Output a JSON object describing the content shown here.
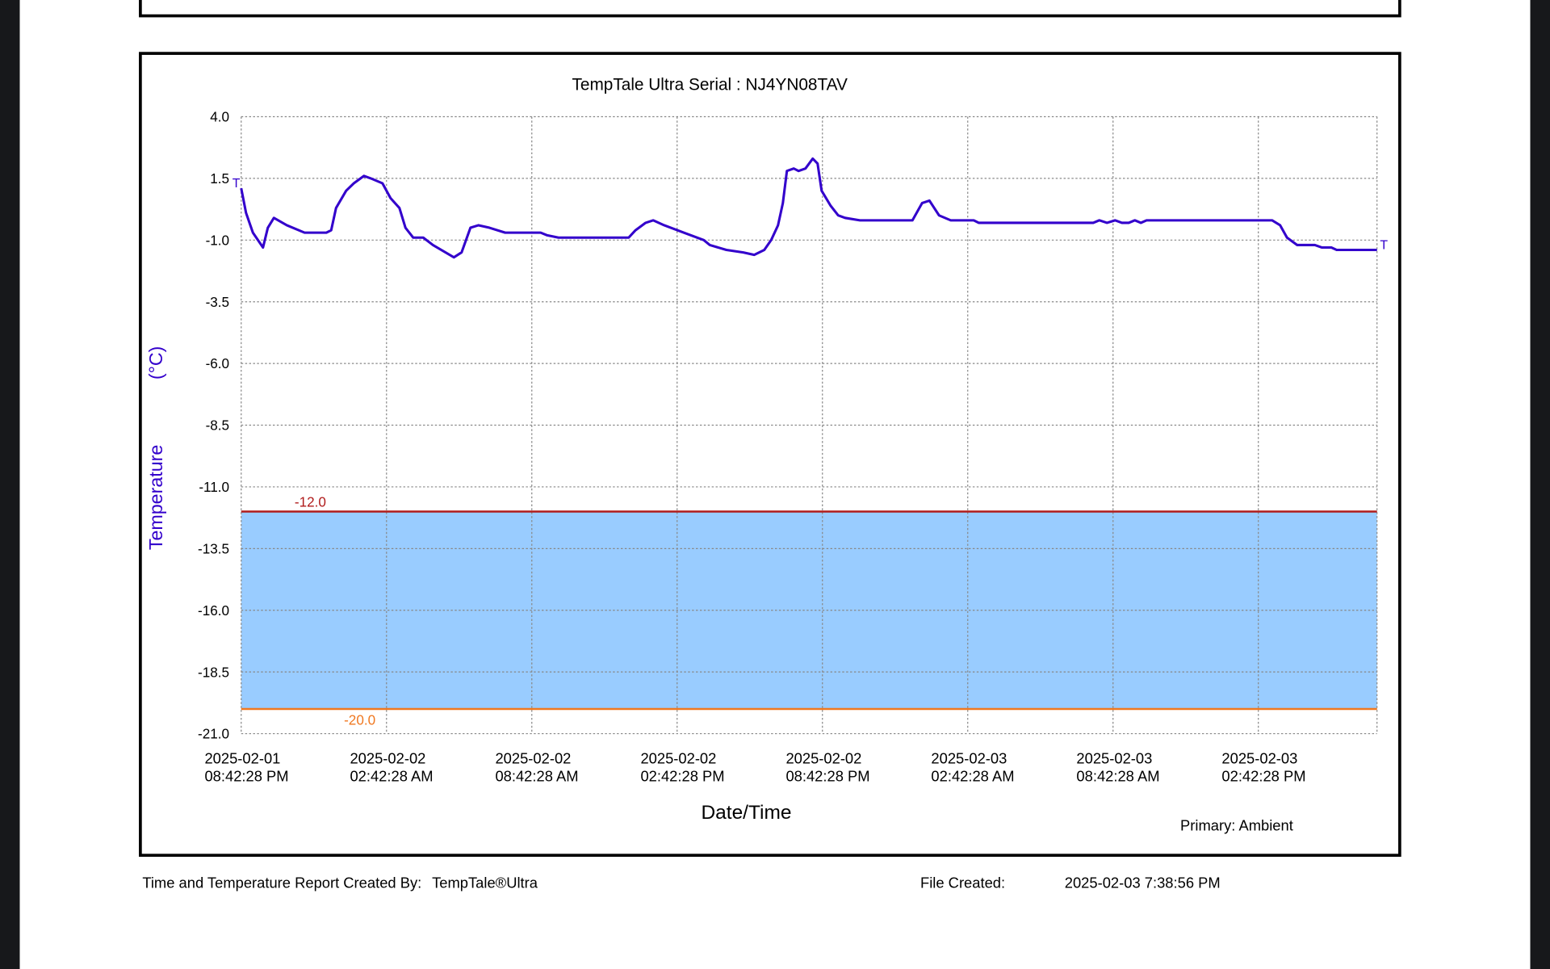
{
  "chart_data": {
    "type": "line",
    "title": "TempTale Ultra  Serial : NJ4YN08TAV",
    "xlabel": "Date/Time",
    "ylabel": "Temperature",
    "yunit": "(°C)",
    "grid": true,
    "xlim": [
      "2025-02-01 20:42:28",
      "2025-02-03 19:36:28"
    ],
    "xticks": [
      {
        "value": "2025-02-01 20:42:28",
        "label": [
          "2025-02-01",
          "08:42:28 PM"
        ]
      },
      {
        "value": "2025-02-02 02:42:28",
        "label": [
          "2025-02-02",
          "02:42:28 AM"
        ]
      },
      {
        "value": "2025-02-02 08:42:28",
        "label": [
          "2025-02-02",
          "08:42:28 AM"
        ]
      },
      {
        "value": "2025-02-02 14:42:28",
        "label": [
          "2025-02-02",
          "02:42:28 PM"
        ]
      },
      {
        "value": "2025-02-02 20:42:28",
        "label": [
          "2025-02-02",
          "08:42:28 PM"
        ]
      },
      {
        "value": "2025-02-03 02:42:28",
        "label": [
          "2025-02-03",
          "02:42:28 AM"
        ]
      },
      {
        "value": "2025-02-03 08:42:28",
        "label": [
          "2025-02-03",
          "08:42:28 AM"
        ]
      },
      {
        "value": "2025-02-03 14:42:28",
        "label": [
          "2025-02-03",
          "02:42:28 PM"
        ]
      }
    ],
    "ylim": [
      -21,
      4
    ],
    "yticks": [
      {
        "value": -21,
        "label": "-21.0"
      },
      {
        "value": -18.5,
        "label": "-18.5"
      },
      {
        "value": -16,
        "label": "-16.0"
      },
      {
        "value": -13.5,
        "label": "-13.5"
      },
      {
        "value": -11,
        "label": "-11.0"
      },
      {
        "value": -8.5,
        "label": "-8.5"
      },
      {
        "value": -6,
        "label": "-6.0"
      },
      {
        "value": -3.5,
        "label": "-3.5"
      },
      {
        "value": -1,
        "label": "-1.0"
      },
      {
        "value": 1.5,
        "label": "1.5"
      },
      {
        "value": 4,
        "label": "4.0"
      }
    ],
    "limits": [
      {
        "value": -12,
        "label": "-12.0",
        "color": "#b01c1c"
      },
      {
        "value": -20,
        "label": "-20.0",
        "color": "#f07820"
      }
    ],
    "band_color": "#99ccff",
    "x": [
      "2025-02-01 20:42:28",
      "2025-02-01 20:54:28",
      "2025-02-01 21:11:28",
      "2025-02-01 21:36:28",
      "2025-02-01 21:48:28",
      "2025-02-01 22:03:28",
      "2025-02-01 22:35:28",
      "2025-02-01 23:19:28",
      "2025-02-02 00:13:28",
      "2025-02-02 00:25:28",
      "2025-02-02 00:37:28",
      "2025-02-02 01:02:28",
      "2025-02-02 01:21:28",
      "2025-02-02 01:46:28",
      "2025-02-02 02:03:28",
      "2025-02-02 02:32:28",
      "2025-02-02 02:52:28",
      "2025-02-02 03:14:28",
      "2025-02-02 03:29:28",
      "2025-02-02 03:48:28",
      "2025-02-02 04:13:28",
      "2025-02-02 04:37:28",
      "2025-02-02 05:29:28",
      "2025-02-02 05:48:28",
      "2025-02-02 06:10:28",
      "2025-02-02 06:30:28",
      "2025-02-02 06:57:28",
      "2025-02-02 07:36:28",
      "2025-02-02 09:04:28",
      "2025-02-02 09:19:28",
      "2025-02-02 09:48:28",
      "2025-02-02 12:42:28",
      "2025-02-02 12:59:28",
      "2025-02-02 13:24:28",
      "2025-02-02 13:43:28",
      "2025-02-02 14:10:28",
      "2025-02-02 14:59:28",
      "2025-02-02 15:48:28",
      "2025-02-02 16:03:28",
      "2025-02-02 16:44:28",
      "2025-02-02 17:26:28",
      "2025-02-02 17:53:28",
      "2025-02-02 18:18:28",
      "2025-02-02 18:35:28",
      "2025-02-02 18:52:28",
      "2025-02-02 19:04:28",
      "2025-02-02 19:14:28",
      "2025-02-02 19:31:28",
      "2025-02-02 19:43:28",
      "2025-02-02 20:00:28",
      "2025-02-02 20:18:28",
      "2025-02-02 20:30:28",
      "2025-02-02 20:40:28",
      "2025-02-02 21:02:28",
      "2025-02-02 21:21:28",
      "2025-02-02 21:38:28",
      "2025-02-02 22:15:28",
      "2025-02-03 00:25:28",
      "2025-02-03 00:49:28",
      "2025-02-03 01:07:28",
      "2025-02-03 01:31:28",
      "2025-02-03 02:00:28",
      "2025-02-03 02:57:28",
      "2025-02-03 03:09:28",
      "2025-02-03 07:53:28",
      "2025-02-03 08:08:28",
      "2025-02-03 08:27:28",
      "2025-02-03 08:47:28",
      "2025-02-03 09:04:28",
      "2025-02-03 09:21:28",
      "2025-02-03 09:36:28",
      "2025-02-03 09:51:28",
      "2025-02-03 10:05:28",
      "2025-02-03 15:16:28",
      "2025-02-03 15:36:28",
      "2025-02-03 15:53:28",
      "2025-02-03 16:18:28",
      "2025-02-03 17:02:28",
      "2025-02-03 17:19:28",
      "2025-02-03 17:43:28",
      "2025-02-03 17:56:28",
      "2025-02-03 19:36:28"
    ],
    "series": [
      {
        "name": "Primary: Ambient",
        "color": "#3300cc",
        "end_marker": "T",
        "values": [
          1.1,
          0.1,
          -0.7,
          -1.3,
          -0.5,
          -0.1,
          -0.4,
          -0.7,
          -0.7,
          -0.6,
          0.3,
          1.0,
          1.3,
          1.6,
          1.5,
          1.3,
          0.7,
          0.3,
          -0.5,
          -0.9,
          -0.9,
          -1.2,
          -1.7,
          -1.5,
          -0.5,
          -0.4,
          -0.5,
          -0.7,
          -0.7,
          -0.8,
          -0.9,
          -0.9,
          -0.6,
          -0.3,
          -0.2,
          -0.4,
          -0.7,
          -1.0,
          -1.2,
          -1.4,
          -1.5,
          -1.6,
          -1.4,
          -1.0,
          -0.4,
          0.5,
          1.8,
          1.9,
          1.8,
          1.9,
          2.3,
          2.1,
          1.0,
          0.4,
          0.0,
          -0.1,
          -0.2,
          -0.2,
          0.5,
          0.6,
          0.0,
          -0.2,
          -0.2,
          -0.3,
          -0.3,
          -0.2,
          -0.3,
          -0.2,
          -0.3,
          -0.3,
          -0.2,
          -0.3,
          -0.2,
          -0.2,
          -0.4,
          -0.9,
          -1.2,
          -1.2,
          -1.3,
          -1.3,
          -1.4,
          -1.4
        ]
      }
    ]
  },
  "footer": {
    "created_by_label": "Time and Temperature Report Created By:",
    "created_by_value": "TempTale®Ultra",
    "file_created_label": "File Created:",
    "file_created_value": "2025-02-03  7:38:56 PM"
  }
}
